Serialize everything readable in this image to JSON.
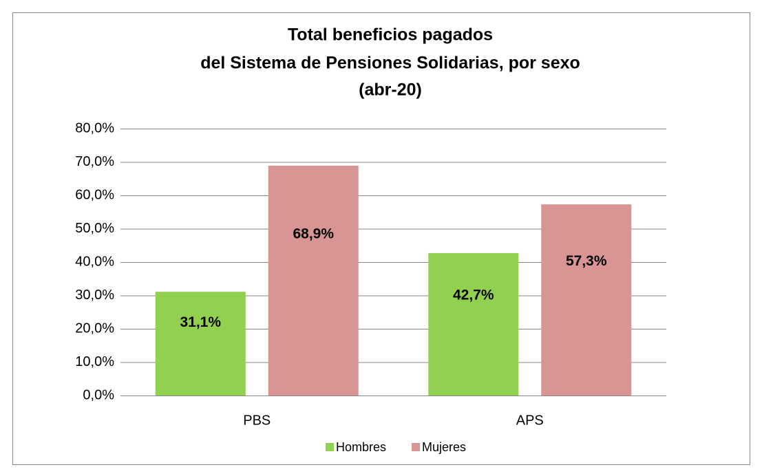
{
  "chart_data": {
    "type": "bar",
    "title": [
      "Total beneficios pagados",
      "del Sistema de Pensiones Solidarias, por sexo",
      "(abr-20)"
    ],
    "categories": [
      "PBS",
      "APS"
    ],
    "series": [
      {
        "name": "Hombres",
        "color": "#92d050",
        "values": [
          31.1,
          42.7
        ],
        "value_labels": [
          "31,1%",
          "42,7%"
        ]
      },
      {
        "name": "Mujeres",
        "color": "#d99594",
        "values": [
          68.9,
          57.3
        ],
        "value_labels": [
          "68,9%",
          "57,3%"
        ]
      }
    ],
    "ylim": [
      0,
      80
    ],
    "yticks": [
      {
        "value": 0,
        "label": "0,0%"
      },
      {
        "value": 10,
        "label": "10,0%"
      },
      {
        "value": 20,
        "label": "20,0%"
      },
      {
        "value": 30,
        "label": "30,0%"
      },
      {
        "value": 40,
        "label": "40,0%"
      },
      {
        "value": 50,
        "label": "50,0%"
      },
      {
        "value": 60,
        "label": "60,0%"
      },
      {
        "value": 70,
        "label": "70,0%"
      },
      {
        "value": 80,
        "label": "80,0%"
      }
    ],
    "grid": true,
    "legend": "bottom"
  }
}
